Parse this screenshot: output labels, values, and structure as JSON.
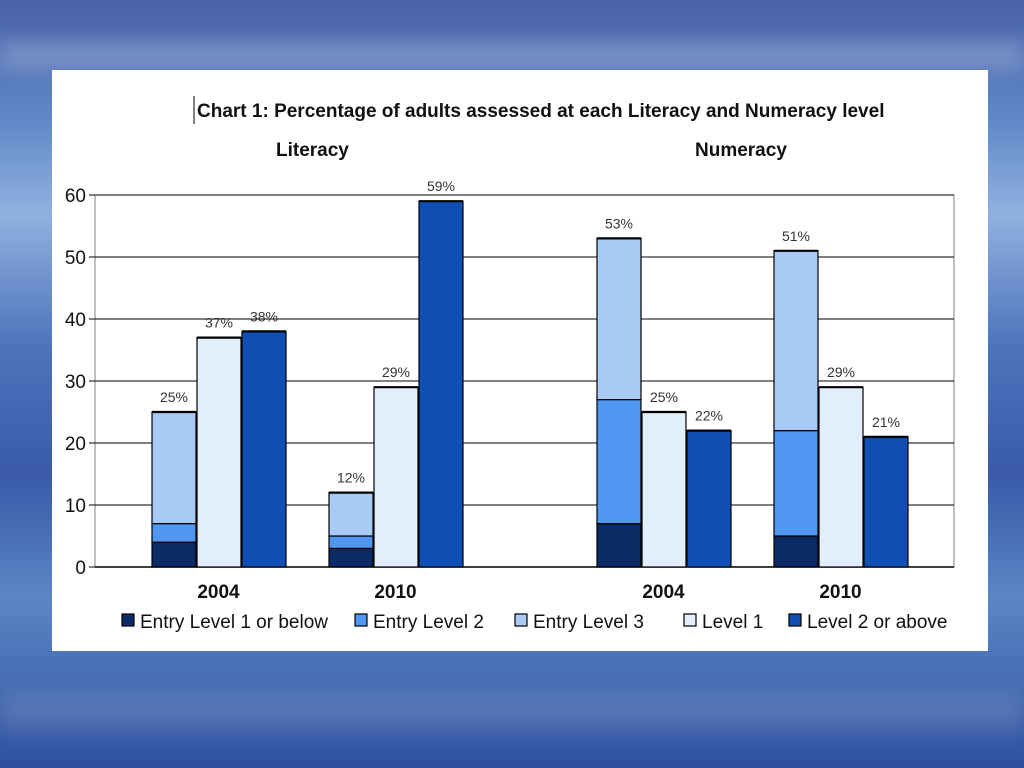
{
  "chart_data": {
    "type": "bar",
    "stacked": true,
    "title": "Chart 1: Percentage of adults assessed at each Literacy and Numeracy level",
    "panels": [
      "Literacy",
      "Numeracy"
    ],
    "ylim": [
      0,
      60
    ],
    "yticks": [
      0,
      10,
      20,
      30,
      40,
      50,
      60
    ],
    "grid": true,
    "legend_position": "bottom",
    "series": [
      {
        "name": "Entry Level 1 or below",
        "color": "#0b2a66"
      },
      {
        "name": "Entry Level 2",
        "color": "#4f97f0"
      },
      {
        "name": "Entry Level 3",
        "color": "#a8cbf5"
      },
      {
        "name": "Level 1",
        "color": "#e3eefc"
      },
      {
        "name": "Level 2 or above",
        "color": "#0f4fb4"
      }
    ],
    "groups": [
      {
        "panel": "Literacy",
        "category": "2004",
        "bars": [
          {
            "segments": {
              "Entry Level 1 or below": 4,
              "Entry Level 2": 3,
              "Entry Level 3": 18
            },
            "label": "25%"
          },
          {
            "segments": {
              "Level 1": 37
            },
            "label": "37%"
          },
          {
            "segments": {
              "Level 2 or above": 38
            },
            "label": "38%"
          }
        ]
      },
      {
        "panel": "Literacy",
        "category": "2010",
        "bars": [
          {
            "segments": {
              "Entry Level 1 or below": 3,
              "Entry Level 2": 2,
              "Entry Level 3": 7
            },
            "label": "12%"
          },
          {
            "segments": {
              "Level 1": 29
            },
            "label": "29%"
          },
          {
            "segments": {
              "Level 2 or above": 59
            },
            "label": "59%"
          }
        ]
      },
      {
        "panel": "Numeracy",
        "category": "2004",
        "bars": [
          {
            "segments": {
              "Entry Level 1 or below": 7,
              "Entry Level 2": 20,
              "Entry Level 3": 26
            },
            "label": "53%"
          },
          {
            "segments": {
              "Level 1": 25
            },
            "label": "25%"
          },
          {
            "segments": {
              "Level 2 or above": 22
            },
            "label": "22%"
          }
        ]
      },
      {
        "panel": "Numeracy",
        "category": "2010",
        "bars": [
          {
            "segments": {
              "Entry Level 1 or below": 5,
              "Entry Level 2": 17,
              "Entry Level 3": 29
            },
            "label": "51%"
          },
          {
            "segments": {
              "Level 1": 29
            },
            "label": "29%"
          },
          {
            "segments": {
              "Level 2 or above": 21
            },
            "label": "21%"
          }
        ]
      }
    ]
  }
}
